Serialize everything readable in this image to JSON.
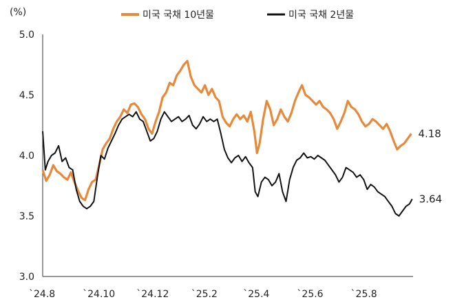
{
  "chart_data": {
    "type": "line",
    "y_unit_label": "(%)",
    "ylim": [
      3.0,
      5.0
    ],
    "y_ticks": [
      "5.0",
      "4.5",
      "4.0",
      "3.5",
      "3.0"
    ],
    "y_tick_values": [
      5.0,
      4.5,
      4.0,
      3.5,
      3.0
    ],
    "x_ticks": [
      "`24.8",
      "`24.10",
      "`24.12",
      "`25.2",
      "`25.4",
      "`25.6",
      "`25.8"
    ],
    "x_tick_values": [
      0,
      61,
      122,
      184,
      243,
      304,
      365
    ],
    "x_range": [
      0,
      420
    ],
    "grid": false,
    "legend_position": "top",
    "series": [
      {
        "name": "미국 국채 10년물",
        "color": "#E8893A",
        "end_label": "4.18",
        "points": [
          [
            0,
            3.88
          ],
          [
            4,
            3.79
          ],
          [
            8,
            3.84
          ],
          [
            12,
            3.92
          ],
          [
            16,
            3.87
          ],
          [
            20,
            3.85
          ],
          [
            24,
            3.82
          ],
          [
            28,
            3.8
          ],
          [
            32,
            3.86
          ],
          [
            36,
            3.78
          ],
          [
            40,
            3.71
          ],
          [
            44,
            3.65
          ],
          [
            48,
            3.63
          ],
          [
            52,
            3.72
          ],
          [
            56,
            3.78
          ],
          [
            60,
            3.8
          ],
          [
            64,
            3.92
          ],
          [
            68,
            4.05
          ],
          [
            72,
            4.1
          ],
          [
            76,
            4.14
          ],
          [
            80,
            4.22
          ],
          [
            84,
            4.28
          ],
          [
            88,
            4.32
          ],
          [
            92,
            4.38
          ],
          [
            96,
            4.35
          ],
          [
            100,
            4.42
          ],
          [
            104,
            4.43
          ],
          [
            108,
            4.4
          ],
          [
            112,
            4.34
          ],
          [
            116,
            4.3
          ],
          [
            120,
            4.22
          ],
          [
            124,
            4.18
          ],
          [
            128,
            4.28
          ],
          [
            132,
            4.36
          ],
          [
            136,
            4.48
          ],
          [
            140,
            4.52
          ],
          [
            144,
            4.6
          ],
          [
            148,
            4.58
          ],
          [
            152,
            4.66
          ],
          [
            156,
            4.7
          ],
          [
            160,
            4.75
          ],
          [
            164,
            4.78
          ],
          [
            168,
            4.65
          ],
          [
            172,
            4.58
          ],
          [
            176,
            4.55
          ],
          [
            180,
            4.52
          ],
          [
            184,
            4.58
          ],
          [
            188,
            4.5
          ],
          [
            192,
            4.55
          ],
          [
            196,
            4.48
          ],
          [
            200,
            4.45
          ],
          [
            204,
            4.32
          ],
          [
            208,
            4.27
          ],
          [
            212,
            4.24
          ],
          [
            216,
            4.3
          ],
          [
            220,
            4.34
          ],
          [
            224,
            4.3
          ],
          [
            228,
            4.33
          ],
          [
            232,
            4.28
          ],
          [
            236,
            4.36
          ],
          [
            240,
            4.2
          ],
          [
            243,
            4.02
          ],
          [
            246,
            4.1
          ],
          [
            250,
            4.3
          ],
          [
            254,
            4.45
          ],
          [
            258,
            4.38
          ],
          [
            262,
            4.25
          ],
          [
            266,
            4.3
          ],
          [
            270,
            4.38
          ],
          [
            274,
            4.32
          ],
          [
            278,
            4.28
          ],
          [
            282,
            4.35
          ],
          [
            286,
            4.45
          ],
          [
            290,
            4.52
          ],
          [
            294,
            4.58
          ],
          [
            298,
            4.5
          ],
          [
            302,
            4.48
          ],
          [
            306,
            4.45
          ],
          [
            310,
            4.42
          ],
          [
            314,
            4.45
          ],
          [
            318,
            4.4
          ],
          [
            322,
            4.38
          ],
          [
            326,
            4.35
          ],
          [
            330,
            4.3
          ],
          [
            334,
            4.22
          ],
          [
            338,
            4.28
          ],
          [
            342,
            4.35
          ],
          [
            346,
            4.45
          ],
          [
            350,
            4.4
          ],
          [
            354,
            4.38
          ],
          [
            358,
            4.34
          ],
          [
            362,
            4.28
          ],
          [
            366,
            4.24
          ],
          [
            370,
            4.26
          ],
          [
            374,
            4.3
          ],
          [
            378,
            4.28
          ],
          [
            382,
            4.25
          ],
          [
            386,
            4.22
          ],
          [
            390,
            4.26
          ],
          [
            394,
            4.2
          ],
          [
            398,
            4.12
          ],
          [
            402,
            4.05
          ],
          [
            406,
            4.08
          ],
          [
            410,
            4.1
          ],
          [
            414,
            4.14
          ],
          [
            418,
            4.18
          ]
        ]
      },
      {
        "name": "미국 국채 2년물",
        "color": "#111111",
        "end_label": "3.64",
        "points": [
          [
            0,
            4.2
          ],
          [
            3,
            3.88
          ],
          [
            6,
            3.95
          ],
          [
            10,
            4.0
          ],
          [
            14,
            4.02
          ],
          [
            18,
            4.08
          ],
          [
            22,
            3.95
          ],
          [
            26,
            3.98
          ],
          [
            30,
            3.9
          ],
          [
            34,
            3.88
          ],
          [
            38,
            3.72
          ],
          [
            42,
            3.62
          ],
          [
            46,
            3.58
          ],
          [
            50,
            3.56
          ],
          [
            54,
            3.58
          ],
          [
            58,
            3.62
          ],
          [
            62,
            3.82
          ],
          [
            66,
            4.0
          ],
          [
            70,
            3.97
          ],
          [
            74,
            4.06
          ],
          [
            78,
            4.12
          ],
          [
            82,
            4.18
          ],
          [
            86,
            4.25
          ],
          [
            90,
            4.3
          ],
          [
            94,
            4.32
          ],
          [
            98,
            4.34
          ],
          [
            102,
            4.32
          ],
          [
            106,
            4.36
          ],
          [
            110,
            4.3
          ],
          [
            114,
            4.28
          ],
          [
            118,
            4.2
          ],
          [
            122,
            4.12
          ],
          [
            126,
            4.14
          ],
          [
            130,
            4.2
          ],
          [
            134,
            4.3
          ],
          [
            138,
            4.36
          ],
          [
            142,
            4.32
          ],
          [
            146,
            4.28
          ],
          [
            150,
            4.3
          ],
          [
            154,
            4.32
          ],
          [
            158,
            4.28
          ],
          [
            162,
            4.3
          ],
          [
            166,
            4.33
          ],
          [
            170,
            4.25
          ],
          [
            174,
            4.22
          ],
          [
            178,
            4.26
          ],
          [
            182,
            4.32
          ],
          [
            186,
            4.28
          ],
          [
            190,
            4.3
          ],
          [
            194,
            4.28
          ],
          [
            198,
            4.3
          ],
          [
            202,
            4.18
          ],
          [
            206,
            4.05
          ],
          [
            210,
            3.98
          ],
          [
            214,
            3.94
          ],
          [
            218,
            3.98
          ],
          [
            222,
            4.0
          ],
          [
            226,
            3.95
          ],
          [
            230,
            3.99
          ],
          [
            234,
            3.94
          ],
          [
            238,
            3.9
          ],
          [
            241,
            3.7
          ],
          [
            244,
            3.66
          ],
          [
            248,
            3.78
          ],
          [
            252,
            3.82
          ],
          [
            256,
            3.8
          ],
          [
            260,
            3.75
          ],
          [
            264,
            3.78
          ],
          [
            268,
            3.85
          ],
          [
            272,
            3.7
          ],
          [
            276,
            3.62
          ],
          [
            280,
            3.8
          ],
          [
            284,
            3.9
          ],
          [
            288,
            3.96
          ],
          [
            292,
            3.98
          ],
          [
            296,
            4.02
          ],
          [
            300,
            3.98
          ],
          [
            304,
            3.99
          ],
          [
            308,
            3.97
          ],
          [
            312,
            4.0
          ],
          [
            316,
            3.98
          ],
          [
            320,
            3.96
          ],
          [
            324,
            3.92
          ],
          [
            328,
            3.88
          ],
          [
            332,
            3.84
          ],
          [
            336,
            3.78
          ],
          [
            340,
            3.82
          ],
          [
            344,
            3.9
          ],
          [
            348,
            3.88
          ],
          [
            352,
            3.86
          ],
          [
            356,
            3.82
          ],
          [
            360,
            3.84
          ],
          [
            364,
            3.8
          ],
          [
            368,
            3.72
          ],
          [
            372,
            3.76
          ],
          [
            376,
            3.74
          ],
          [
            380,
            3.7
          ],
          [
            384,
            3.68
          ],
          [
            388,
            3.66
          ],
          [
            392,
            3.62
          ],
          [
            396,
            3.58
          ],
          [
            400,
            3.52
          ],
          [
            404,
            3.5
          ],
          [
            408,
            3.54
          ],
          [
            412,
            3.58
          ],
          [
            416,
            3.6
          ],
          [
            419,
            3.64
          ]
        ]
      }
    ]
  }
}
